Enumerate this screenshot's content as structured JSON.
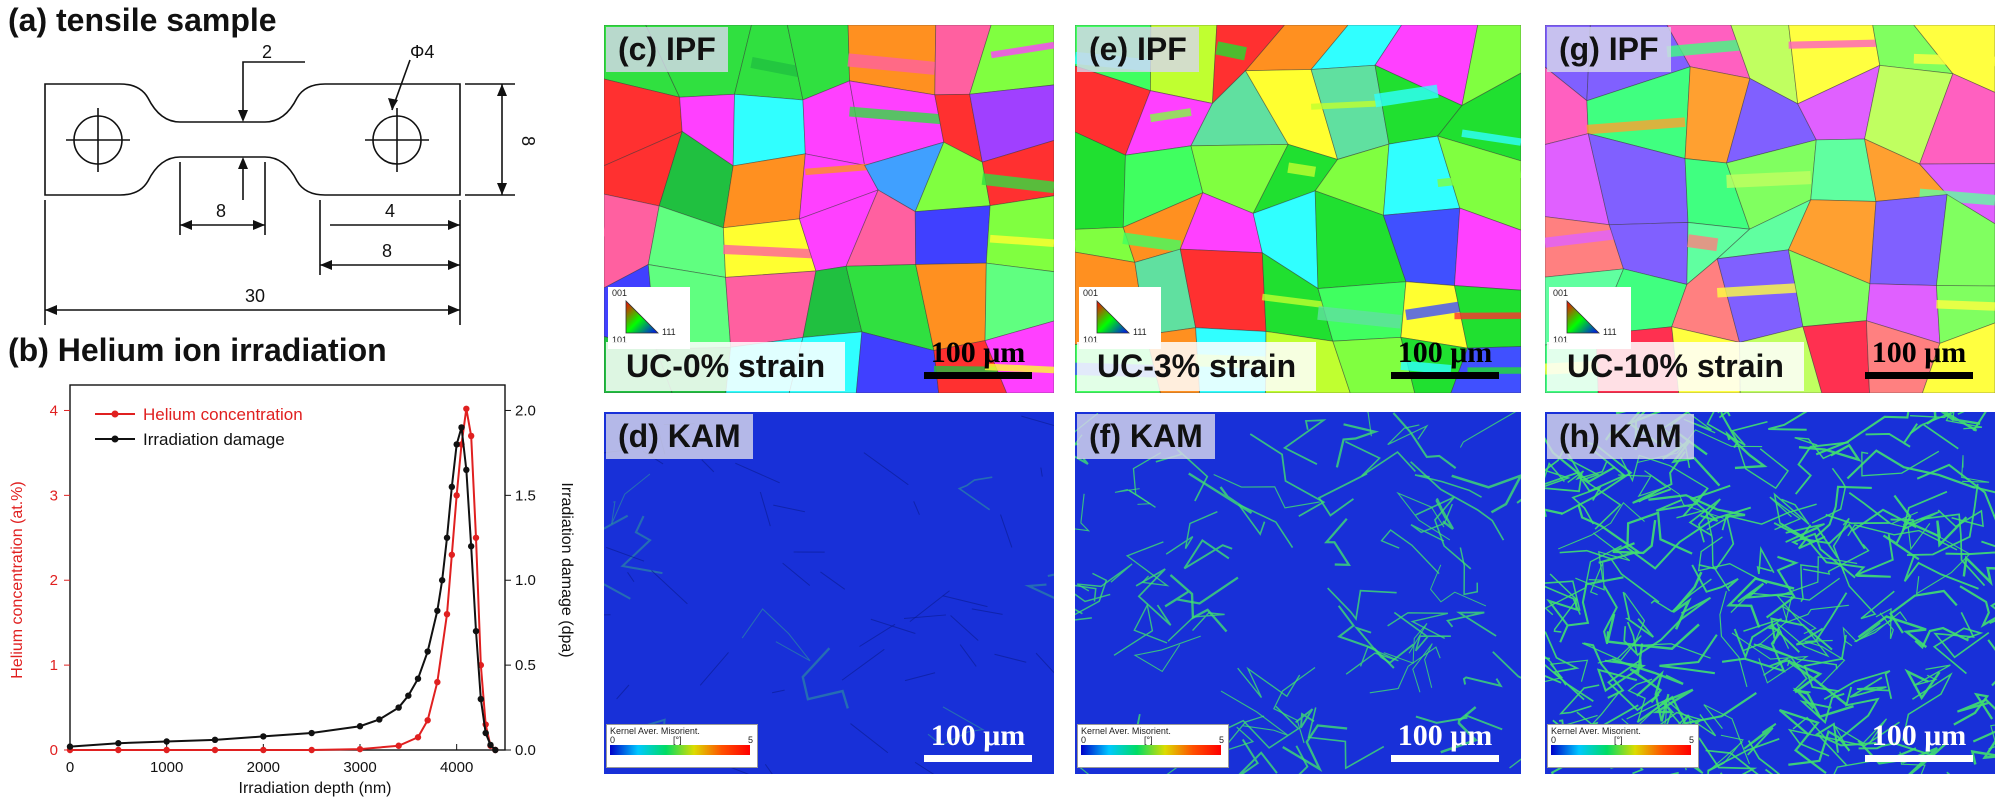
{
  "panel_a": {
    "title": "(a) tensile sample",
    "dims": {
      "d_top": "2",
      "d_hole": "Φ4",
      "d_height": "8",
      "d_gauge": "8",
      "d_grip_w": "4",
      "d_grip_len": "8",
      "d_total": "30"
    }
  },
  "panel_b": {
    "title": "(b) Helium ion irradiation"
  },
  "chart_data": {
    "type": "line",
    "xlabel": "Irradiation depth (nm)",
    "ylabel": "Helium concentration (at.%)",
    "y2label": "Irradiation damage (dpa)",
    "xlim": [
      0,
      4500
    ],
    "ylim": [
      0,
      4.3
    ],
    "y2lim": [
      0,
      2.15
    ],
    "xticks": [
      "0",
      "1000",
      "2000",
      "3000",
      "4000"
    ],
    "yticks": [
      "0",
      "1",
      "2",
      "3",
      "4"
    ],
    "y2ticks": [
      "0.0",
      "0.5",
      "1.0",
      "1.5",
      "2.0"
    ],
    "legend_position": "top-left",
    "grid": false,
    "series": [
      {
        "name": "Helium concentration",
        "color": "#e02020",
        "axis": "left",
        "x": [
          0,
          500,
          1000,
          1500,
          2000,
          2500,
          3000,
          3400,
          3600,
          3700,
          3800,
          3900,
          3950,
          4000,
          4050,
          4100,
          4150,
          4200,
          4250,
          4300,
          4350,
          4400
        ],
        "y": [
          0,
          0,
          0,
          0,
          0,
          0,
          0.01,
          0.05,
          0.15,
          0.35,
          0.8,
          1.6,
          2.3,
          3.0,
          3.6,
          4.02,
          3.7,
          2.5,
          1.0,
          0.3,
          0.05,
          0
        ]
      },
      {
        "name": "Irradiation damage",
        "color": "#111111",
        "axis": "right",
        "x": [
          0,
          500,
          1000,
          1500,
          2000,
          2500,
          3000,
          3200,
          3400,
          3500,
          3600,
          3700,
          3800,
          3850,
          3900,
          3950,
          4000,
          4050,
          4100,
          4150,
          4200,
          4250,
          4300,
          4350,
          4400
        ],
        "y": [
          0.02,
          0.04,
          0.05,
          0.06,
          0.08,
          0.1,
          0.14,
          0.18,
          0.25,
          0.32,
          0.42,
          0.58,
          0.82,
          1.0,
          1.25,
          1.55,
          1.8,
          1.9,
          1.65,
          1.2,
          0.7,
          0.3,
          0.1,
          0.03,
          0.0
        ]
      }
    ]
  },
  "ipf_legend": {
    "top": "001",
    "left": "101",
    "right": "111"
  },
  "kam_legend": {
    "title": "Kernel Aver. Misorient.",
    "min": "0",
    "mid": "[°]",
    "max": "5"
  },
  "maps": [
    {
      "label": "(c) IPF",
      "strain": "UC-0% strain",
      "scale": "100 μm"
    },
    {
      "label": "(e) IPF",
      "strain": "UC-3% strain",
      "scale": "100 μm"
    },
    {
      "label": "(g) IPF",
      "strain": "UC-10% strain",
      "scale": "100 μm"
    },
    {
      "label": "(d) KAM",
      "scale": "100 μm"
    },
    {
      "label": "(f) KAM",
      "scale": "100 μm"
    },
    {
      "label": "(h) KAM",
      "scale": "100 μm"
    }
  ],
  "colors": {
    "kam_bg": "#1830d8",
    "kam_line": "#40e070"
  }
}
